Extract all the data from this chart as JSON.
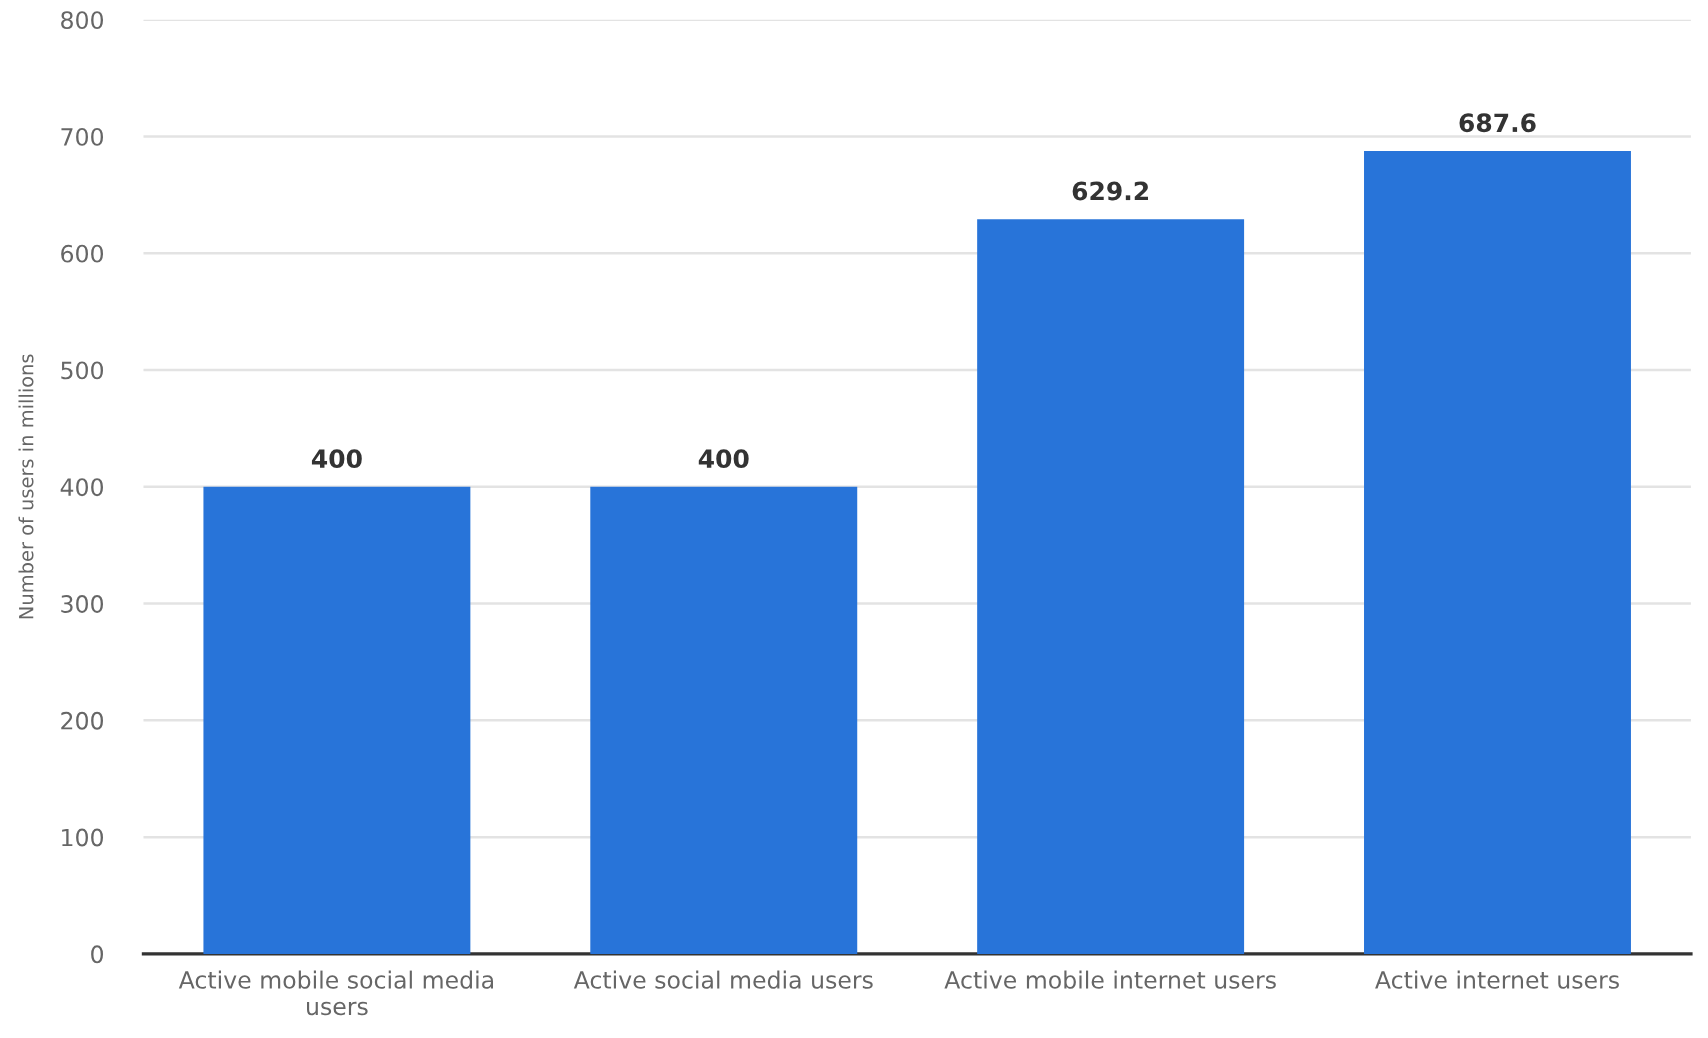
{
  "chart_data": {
    "type": "bar",
    "ylabel": "Number of users in millions",
    "categories": [
      "Active mobile social media users",
      "Active social media users",
      "Active mobile internet users",
      "Active internet users"
    ],
    "values": [
      400,
      400,
      629.2,
      687.6
    ],
    "color": "#2874d9",
    "ylim": [
      0,
      800
    ],
    "yticks": [
      0,
      100,
      200,
      300,
      400,
      500,
      600,
      700,
      800
    ],
    "grid": "y",
    "data_labels": true
  }
}
